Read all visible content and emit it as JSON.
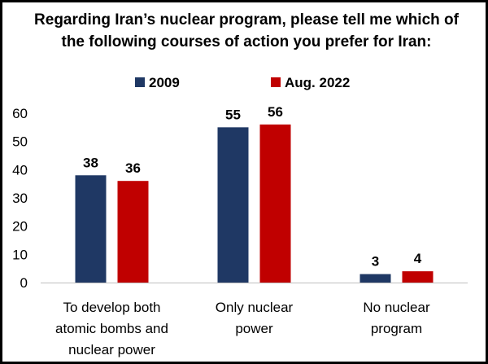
{
  "chart_data": {
    "type": "bar",
    "title_lines": [
      "Regarding Iran’s nuclear program, please tell me which of",
      "the following courses of action you prefer for Iran:"
    ],
    "categories": [
      [
        "To develop both",
        "atomic bombs and",
        "nuclear power"
      ],
      [
        "Only nuclear",
        "power"
      ],
      [
        "No nuclear",
        "program"
      ]
    ],
    "series": [
      {
        "name": "2009",
        "values": [
          38,
          55,
          3
        ],
        "color": "#1f3864"
      },
      {
        "name": "Aug. 2022",
        "values": [
          36,
          56,
          4
        ],
        "color": "#c00000"
      }
    ],
    "yticks": [
      0,
      10,
      20,
      30,
      40,
      50,
      60
    ],
    "ylim": [
      0,
      60
    ],
    "xlabel": "",
    "ylabel": "",
    "grid": false,
    "legend_position": "top-center"
  }
}
